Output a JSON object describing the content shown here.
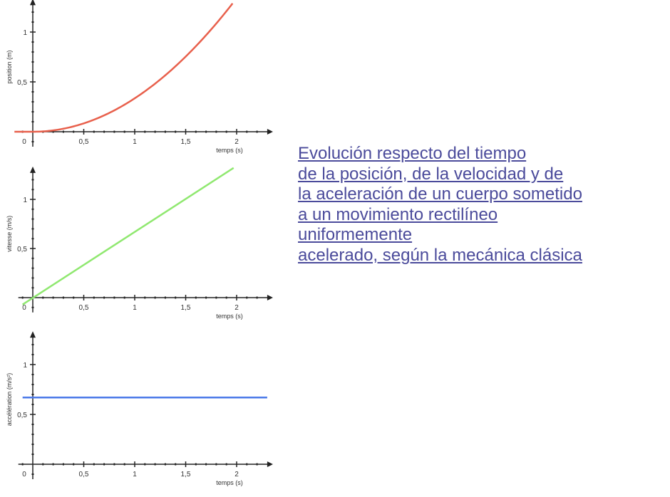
{
  "caption": {
    "lines": [
      "Evolución respecto del tiempo",
      "de la posición, de la velocidad y de",
      "la aceleración de un cuerpo sometido",
      "a un movimiento rectilíneo",
      "uniformemente",
      "acelerado, según la mecánica clásica"
    ]
  },
  "chart_data": [
    {
      "type": "line",
      "xlabel": "temps (s)",
      "ylabel": "position (m)",
      "xlim": [
        -0.1,
        2.3
      ],
      "ylim": [
        -0.15,
        1.32
      ],
      "xticks": [
        "0",
        "0,5",
        "1",
        "1,5",
        "2"
      ],
      "yticks": [
        "0,5",
        "1"
      ],
      "color": "#e8604c",
      "series": [
        {
          "x": [
            -0.1,
            0,
            0.25,
            0.5,
            0.75,
            1,
            1.25,
            1.5,
            1.75,
            1.97
          ],
          "y": [
            0,
            0,
            0.02,
            0.08,
            0.19,
            0.335,
            0.52,
            0.75,
            1.03,
            1.3
          ]
        }
      ]
    },
    {
      "type": "line",
      "xlabel": "temps (s)",
      "ylabel": "vitesse (m/s)",
      "xlim": [
        -0.1,
        2.3
      ],
      "ylim": [
        -0.15,
        1.32
      ],
      "xticks": [
        "0",
        "0,5",
        "1",
        "1,5",
        "2"
      ],
      "yticks": [
        "0,5",
        "1"
      ],
      "color": "#90e870",
      "series": [
        {
          "x": [
            -0.1,
            1.97
          ],
          "y": [
            -0.07,
            1.32
          ]
        }
      ]
    },
    {
      "type": "line",
      "xlabel": "temps (s)",
      "ylabel": "accélération (m/s²)",
      "xlim": [
        -0.1,
        2.3
      ],
      "ylim": [
        -0.15,
        1.32
      ],
      "xticks": [
        "0",
        "0,5",
        "1",
        "1,5",
        "2"
      ],
      "yticks": [
        "0,5",
        "1"
      ],
      "color": "#4a78e8",
      "series": [
        {
          "x": [
            -0.1,
            2.3
          ],
          "y": [
            0.67,
            0.67
          ]
        }
      ]
    }
  ]
}
